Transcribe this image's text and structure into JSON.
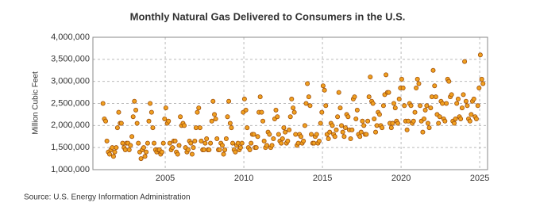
{
  "chart_data": {
    "type": "scatter",
    "title": "Monthly Natural Gas Delivered to Consumers in the U.S.",
    "y_label": "Million Cubic Feet",
    "source": "Source: U.S. Energy Information Administration",
    "color": "#f0a020",
    "edge_color": "#a0500a",
    "grid": true,
    "xlim": [
      2000.4,
      2025.5
    ],
    "xticks": [
      2005,
      2010,
      2015,
      2020,
      2025
    ],
    "ylim": [
      1000000,
      4000000
    ],
    "yticks": [
      {
        "value": 1000000,
        "label": "1,000,000"
      },
      {
        "value": 1500000,
        "label": "1,500,000"
      },
      {
        "value": 2000000,
        "label": "2,000,000"
      },
      {
        "value": 2500000,
        "label": "2,500,000"
      },
      {
        "value": 3000000,
        "label": "3,000,000"
      },
      {
        "value": 3500000,
        "label": "3,500,000"
      },
      {
        "value": 4000000,
        "label": "4,000,000"
      }
    ],
    "x": [
      2001.04,
      2001.13,
      2001.21,
      2001.29,
      2001.38,
      2001.46,
      2001.54,
      2001.63,
      2001.71,
      2001.79,
      2001.88,
      2001.96,
      2002.04,
      2002.13,
      2002.21,
      2002.29,
      2002.38,
      2002.46,
      2002.54,
      2002.63,
      2002.71,
      2002.79,
      2002.88,
      2002.96,
      2003.04,
      2003.13,
      2003.21,
      2003.29,
      2003.38,
      2003.46,
      2003.54,
      2003.63,
      2003.71,
      2003.79,
      2003.88,
      2003.96,
      2004.04,
      2004.13,
      2004.21,
      2004.29,
      2004.38,
      2004.46,
      2004.54,
      2004.63,
      2004.71,
      2004.79,
      2004.88,
      2004.96,
      2005.04,
      2005.13,
      2005.21,
      2005.29,
      2005.38,
      2005.46,
      2005.54,
      2005.63,
      2005.71,
      2005.79,
      2005.88,
      2005.96,
      2006.04,
      2006.13,
      2006.21,
      2006.29,
      2006.38,
      2006.46,
      2006.54,
      2006.63,
      2006.71,
      2006.79,
      2006.88,
      2006.96,
      2007.04,
      2007.13,
      2007.21,
      2007.29,
      2007.38,
      2007.46,
      2007.54,
      2007.63,
      2007.71,
      2007.79,
      2007.88,
      2007.96,
      2008.04,
      2008.13,
      2008.21,
      2008.29,
      2008.38,
      2008.46,
      2008.54,
      2008.63,
      2008.71,
      2008.79,
      2008.88,
      2008.96,
      2009.04,
      2009.13,
      2009.21,
      2009.29,
      2009.38,
      2009.46,
      2009.54,
      2009.63,
      2009.71,
      2009.79,
      2009.88,
      2009.96,
      2010.04,
      2010.13,
      2010.21,
      2010.29,
      2010.38,
      2010.46,
      2010.54,
      2010.63,
      2010.71,
      2010.79,
      2010.88,
      2010.96,
      2011.04,
      2011.13,
      2011.21,
      2011.29,
      2011.38,
      2011.46,
      2011.54,
      2011.63,
      2011.71,
      2011.79,
      2011.88,
      2011.96,
      2012.04,
      2012.13,
      2012.21,
      2012.29,
      2012.38,
      2012.46,
      2012.54,
      2012.63,
      2012.71,
      2012.79,
      2012.88,
      2012.96,
      2013.04,
      2013.13,
      2013.21,
      2013.29,
      2013.38,
      2013.46,
      2013.54,
      2013.63,
      2013.71,
      2013.79,
      2013.88,
      2013.96,
      2014.04,
      2014.13,
      2014.21,
      2014.29,
      2014.38,
      2014.46,
      2014.54,
      2014.63,
      2014.71,
      2014.79,
      2014.88,
      2014.96,
      2015.04,
      2015.13,
      2015.21,
      2015.29,
      2015.38,
      2015.46,
      2015.54,
      2015.63,
      2015.71,
      2015.79,
      2015.88,
      2015.96,
      2016.04,
      2016.13,
      2016.21,
      2016.29,
      2016.38,
      2016.46,
      2016.54,
      2016.63,
      2016.71,
      2016.79,
      2016.88,
      2016.96,
      2017.04,
      2017.13,
      2017.21,
      2017.29,
      2017.38,
      2017.46,
      2017.54,
      2017.63,
      2017.71,
      2017.79,
      2017.88,
      2017.96,
      2018.04,
      2018.13,
      2018.21,
      2018.29,
      2018.38,
      2018.46,
      2018.54,
      2018.63,
      2018.71,
      2018.79,
      2018.88,
      2018.96,
      2019.04,
      2019.13,
      2019.21,
      2019.29,
      2019.38,
      2019.46,
      2019.54,
      2019.63,
      2019.71,
      2019.79,
      2019.88,
      2019.96,
      2020.04,
      2020.13,
      2020.21,
      2020.29,
      2020.38,
      2020.46,
      2020.54,
      2020.63,
      2020.71,
      2020.79,
      2020.88,
      2020.96,
      2021.04,
      2021.13,
      2021.21,
      2021.29,
      2021.38,
      2021.46,
      2021.54,
      2021.63,
      2021.71,
      2021.79,
      2021.88,
      2021.96,
      2022.04,
      2022.13,
      2022.21,
      2022.29,
      2022.38,
      2022.46,
      2022.54,
      2022.63,
      2022.71,
      2022.79,
      2022.88,
      2022.96,
      2023.04,
      2023.13,
      2023.21,
      2023.29,
      2023.38,
      2023.46,
      2023.54,
      2023.63,
      2023.71,
      2023.79,
      2023.88,
      2023.96,
      2024.04,
      2024.13,
      2024.21,
      2024.29,
      2024.38,
      2024.46,
      2024.54,
      2024.63,
      2024.71,
      2024.79,
      2024.88,
      2024.96,
      2025.04,
      2025.13,
      2025.21
    ],
    "values": [
      2500000,
      2150000,
      2100000,
      1650000,
      1400000,
      1350000,
      1450000,
      1500000,
      1300000,
      1400000,
      1500000,
      1950000,
      2300000,
      2050000,
      2050000,
      1600000,
      1500000,
      1450000,
      1600000,
      1600000,
      1450000,
      1550000,
      1750000,
      2200000,
      2550000,
      2350000,
      2050000,
      1600000,
      1400000,
      1250000,
      1450000,
      1500000,
      1300000,
      1400000,
      1600000,
      2100000,
      2500000,
      2300000,
      1950000,
      1600000,
      1450000,
      1400000,
      1450000,
      1450000,
      1350000,
      1400000,
      1600000,
      2150000,
      2400000,
      2050000,
      2100000,
      1600000,
      1450000,
      1500000,
      1650000,
      1650000,
      1400000,
      1350000,
      1550000,
      2200000,
      2000000,
      2050000,
      2000000,
      1500000,
      1400000,
      1450000,
      1650000,
      1600000,
      1350000,
      1500000,
      1650000,
      1950000,
      2300000,
      2400000,
      1950000,
      1650000,
      1450000,
      1450000,
      1600000,
      1700000,
      1450000,
      1450000,
      1600000,
      2100000,
      2550000,
      2250000,
      2150000,
      1700000,
      1450000,
      1450000,
      1600000,
      1550000,
      1350000,
      1450000,
      1700000,
      2200000,
      2550000,
      2050000,
      1950000,
      1600000,
      1450000,
      1400000,
      1550000,
      1600000,
      1450000,
      1500000,
      1600000,
      2300000,
      2600000,
      2350000,
      1950000,
      1500000,
      1450000,
      1600000,
      1800000,
      1800000,
      1500000,
      1500000,
      1750000,
      2300000,
      2650000,
      2300000,
      2100000,
      1650000,
      1500000,
      1550000,
      1850000,
      1800000,
      1500000,
      1550000,
      1700000,
      2150000,
      2350000,
      2200000,
      1800000,
      1650000,
      1600000,
      1700000,
      1950000,
      1850000,
      1600000,
      1650000,
      1900000,
      2200000,
      2600000,
      2400000,
      2300000,
      1800000,
      1550000,
      1600000,
      1800000,
      1750000,
      1600000,
      1650000,
      2000000,
      2500000,
      2950000,
      2650000,
      2450000,
      1800000,
      1600000,
      1600000,
      1750000,
      1800000,
      1600000,
      1650000,
      2050000,
      2300000,
      2900000,
      2800000,
      2450000,
      1800000,
      1700000,
      1850000,
      2050000,
      2000000,
      1800000,
      1750000,
      1900000,
      2200000,
      2750000,
      2400000,
      2000000,
      1850000,
      1750000,
      1950000,
      2250000,
      2200000,
      1900000,
      1700000,
      1900000,
      2600000,
      2650000,
      2150000,
      2350000,
      1800000,
      1750000,
      1850000,
      2100000,
      2000000,
      1800000,
      1800000,
      2100000,
      2650000,
      3100000,
      2550000,
      2500000,
      2150000,
      1850000,
      2000000,
      2300000,
      2250000,
      2000000,
      1950000,
      2450000,
      2700000,
      3150000,
      2750000,
      2750000,
      2050000,
      1950000,
      2050000,
      2500000,
      2400000,
      2100000,
      2050000,
      2600000,
      2850000,
      3050000,
      2850000,
      2450000,
      2100000,
      1900000,
      2100000,
      2500000,
      2450000,
      2050000,
      2100000,
      2300000,
      2850000,
      3050000,
      2950000,
      2450000,
      2100000,
      1850000,
      2150000,
      2350000,
      2450000,
      2050000,
      1950000,
      2400000,
      2650000,
      3250000,
      2900000,
      2650000,
      2250000,
      2050000,
      2200000,
      2550000,
      2500000,
      2150000,
      2100000,
      2500000,
      3050000,
      3000000,
      2650000,
      2700000,
      2100000,
      2050000,
      2150000,
      2500000,
      2600000,
      2200000,
      2150000,
      2400000,
      2700000,
      3450000,
      2550000,
      2450000,
      2150000,
      2100000,
      2250000,
      2550000,
      2600000,
      2200000,
      2150000,
      2450000,
      2850000,
      3600000,
      3050000,
      2950000
    ]
  }
}
